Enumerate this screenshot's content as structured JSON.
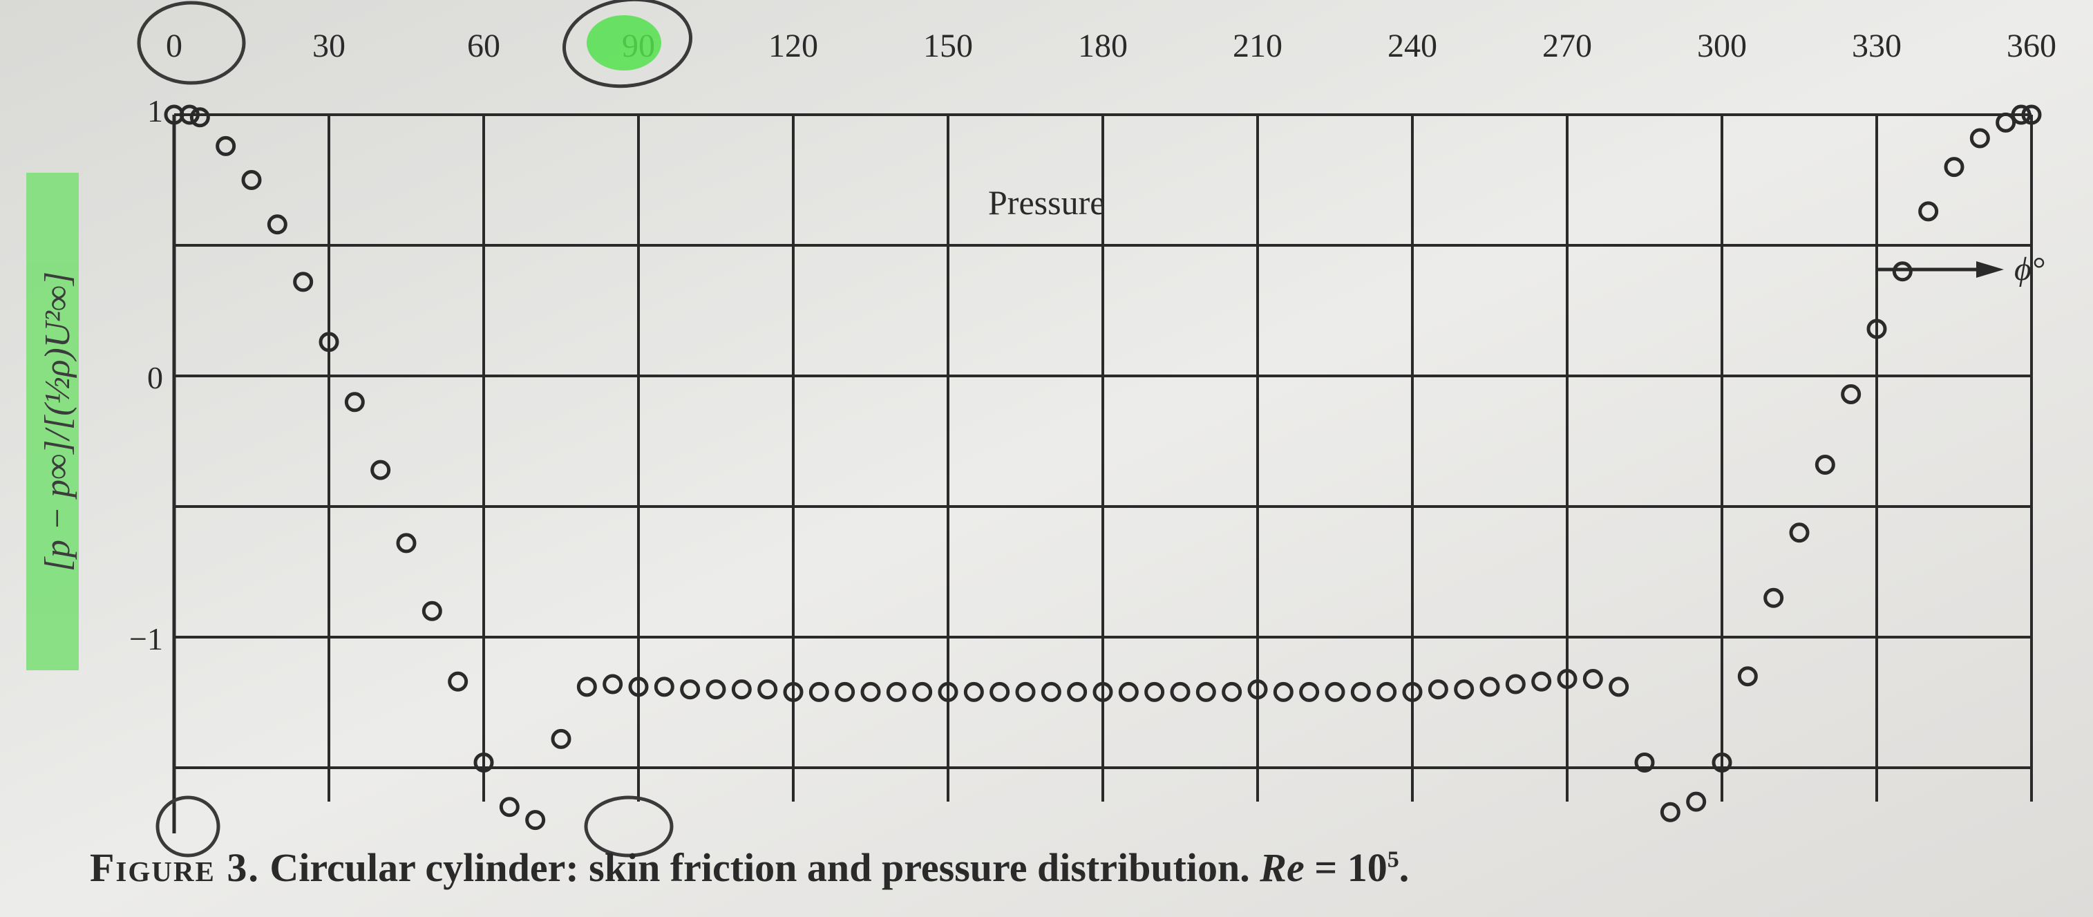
{
  "chart_data": {
    "type": "scatter",
    "title": "",
    "annotation_top": "Pressure",
    "annotation_arrow": "ϕ°",
    "xlabel": "",
    "ylabel": "[p − p∞]/[(½ρ)U²∞]",
    "x_ticks": [
      "0",
      "30",
      "60",
      "90",
      "120",
      "150",
      "180",
      "210",
      "240",
      "270",
      "300",
      "330",
      "360"
    ],
    "y_ticks": [
      "1",
      "0",
      "−1"
    ],
    "xlim": [
      0,
      360
    ],
    "ylim": [
      -1.8,
      1.0
    ],
    "grid": true,
    "highlight_colors": {
      "marker": "#54e04e",
      "label_band": "#7fe07a"
    },
    "series": [
      {
        "points": [
          [
            0,
            1.0
          ],
          [
            3,
            1.0
          ],
          [
            5,
            0.99
          ],
          [
            10,
            0.88
          ],
          [
            15,
            0.75
          ],
          [
            20,
            0.58
          ],
          [
            25,
            0.36
          ],
          [
            30,
            0.13
          ],
          [
            35,
            -0.1
          ],
          [
            40,
            -0.36
          ],
          [
            45,
            -0.64
          ],
          [
            50,
            -0.9
          ],
          [
            55,
            -1.17
          ],
          [
            60,
            -1.48
          ],
          [
            65,
            -1.65
          ],
          [
            70,
            -1.7
          ],
          [
            75,
            -1.39
          ],
          [
            80,
            -1.19
          ],
          [
            85,
            -1.18
          ],
          [
            90,
            -1.19
          ],
          [
            95,
            -1.19
          ],
          [
            100,
            -1.2
          ],
          [
            105,
            -1.2
          ],
          [
            110,
            -1.2
          ],
          [
            115,
            -1.2
          ],
          [
            120,
            -1.21
          ],
          [
            125,
            -1.21
          ],
          [
            130,
            -1.21
          ],
          [
            135,
            -1.21
          ],
          [
            140,
            -1.21
          ],
          [
            145,
            -1.21
          ],
          [
            150,
            -1.21
          ],
          [
            155,
            -1.21
          ],
          [
            160,
            -1.21
          ],
          [
            165,
            -1.21
          ],
          [
            170,
            -1.21
          ],
          [
            175,
            -1.21
          ],
          [
            180,
            -1.21
          ],
          [
            185,
            -1.21
          ],
          [
            190,
            -1.21
          ],
          [
            195,
            -1.21
          ],
          [
            200,
            -1.21
          ],
          [
            205,
            -1.21
          ],
          [
            210,
            -1.2
          ],
          [
            215,
            -1.21
          ],
          [
            220,
            -1.21
          ],
          [
            225,
            -1.21
          ],
          [
            230,
            -1.21
          ],
          [
            235,
            -1.21
          ],
          [
            240,
            -1.21
          ],
          [
            245,
            -1.2
          ],
          [
            250,
            -1.2
          ],
          [
            255,
            -1.19
          ],
          [
            260,
            -1.18
          ],
          [
            265,
            -1.17
          ],
          [
            270,
            -1.16
          ],
          [
            275,
            -1.16
          ],
          [
            280,
            -1.19
          ],
          [
            285,
            -1.48
          ],
          [
            290,
            -1.67
          ],
          [
            295,
            -1.63
          ],
          [
            300,
            -1.48
          ],
          [
            305,
            -1.15
          ],
          [
            310,
            -0.85
          ],
          [
            315,
            -0.6
          ],
          [
            320,
            -0.34
          ],
          [
            325,
            -0.07
          ],
          [
            330,
            0.18
          ],
          [
            335,
            0.4
          ],
          [
            340,
            0.63
          ],
          [
            345,
            0.8
          ],
          [
            350,
            0.91
          ],
          [
            355,
            0.97
          ],
          [
            358,
            1.0
          ],
          [
            360,
            1.0
          ]
        ]
      }
    ]
  },
  "caption": {
    "prefix": "Figure 3.",
    "text": " Circular cylinder: skin friction and pressure distribution. ",
    "re": "Re",
    "eq": " = 10",
    "exp": "5",
    "end": "."
  }
}
